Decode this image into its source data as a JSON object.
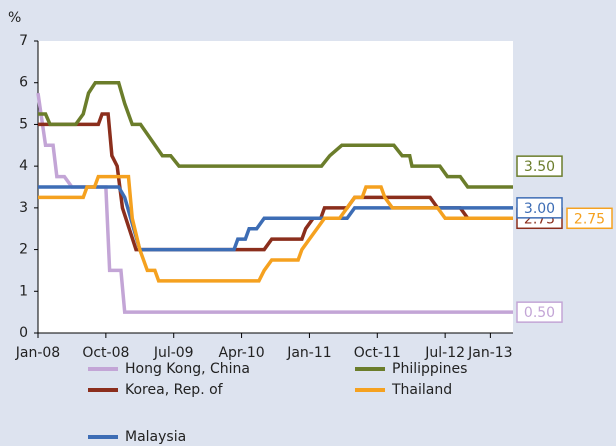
{
  "chart_data": {
    "type": "line",
    "y_unit": "%",
    "xlim": [
      0,
      63
    ],
    "ylim": [
      0,
      7
    ],
    "yticks": [
      0,
      1,
      2,
      3,
      4,
      5,
      6,
      7
    ],
    "xticks": [
      {
        "value": 0,
        "label": "Jan-08"
      },
      {
        "value": 9,
        "label": "Oct-08"
      },
      {
        "value": 18,
        "label": "Jul-09"
      },
      {
        "value": 27,
        "label": "Apr-10"
      },
      {
        "value": 36,
        "label": "Jan-11"
      },
      {
        "value": 45,
        "label": "Oct-11"
      },
      {
        "value": 54,
        "label": "Jul-12"
      },
      {
        "value": 60,
        "label": "Jan-13"
      }
    ],
    "legend": "bottom",
    "series": [
      {
        "name": "Hong Kong, China",
        "color": "#c3a5d6",
        "x": [
          0,
          1,
          2,
          2.5,
          3.5,
          4.5,
          9,
          9.5,
          11,
          11.5,
          63
        ],
        "values": [
          5.75,
          4.5,
          4.5,
          3.75,
          3.75,
          3.5,
          3.5,
          1.5,
          1.5,
          0.5,
          0.5
        ],
        "end_label": "0.50"
      },
      {
        "name": "Korea, Rep. of",
        "color": "#8b2e1c",
        "x": [
          0,
          8,
          8.5,
          9.3,
          9.8,
          10.5,
          11.2,
          13,
          30,
          31,
          35,
          35.5,
          36.5,
          37.5,
          38,
          41,
          42,
          52,
          53,
          56,
          57,
          63
        ],
        "values": [
          5.0,
          5.0,
          5.25,
          5.25,
          4.25,
          4.0,
          3.0,
          2.0,
          2.0,
          2.25,
          2.25,
          2.5,
          2.75,
          2.75,
          3.0,
          3.0,
          3.25,
          3.25,
          3.0,
          3.0,
          2.75,
          2.75
        ],
        "end_label": "2.75"
      },
      {
        "name": "Malaysia",
        "color": "#3d6db5",
        "x": [
          0,
          10.7,
          11.5,
          13.5,
          26,
          26.5,
          27.5,
          28,
          29,
          30,
          41,
          42,
          63
        ],
        "values": [
          3.5,
          3.5,
          3.25,
          2.0,
          2.0,
          2.25,
          2.25,
          2.5,
          2.5,
          2.75,
          2.75,
          3.0,
          3.0
        ],
        "end_label": "3.00"
      },
      {
        "name": "Philippines",
        "color": "#6b7d2b",
        "x": [
          0,
          1,
          1.6,
          5,
          6,
          6.7,
          7.6,
          10.7,
          11.5,
          12.5,
          13.6,
          16.5,
          17.6,
          18.7,
          37.6,
          38.7,
          40.3,
          47.2,
          48.3,
          49.3,
          49.6,
          53.3,
          54.3,
          56,
          57,
          63
        ],
        "values": [
          5.25,
          5.25,
          5.0,
          5.0,
          5.25,
          5.75,
          6.0,
          6.0,
          5.5,
          5.0,
          5.0,
          4.25,
          4.25,
          4.0,
          4.0,
          4.25,
          4.5,
          4.5,
          4.25,
          4.25,
          4.0,
          4.0,
          3.75,
          3.75,
          3.5,
          3.5
        ],
        "end_label": "3.50"
      },
      {
        "name": "Thailand",
        "color": "#f5a11f",
        "x": [
          0,
          6,
          6.5,
          7.5,
          8,
          12,
          12.5,
          13.5,
          14.5,
          15.5,
          16,
          29.3,
          30,
          31,
          34.5,
          35,
          36,
          37,
          38,
          40,
          41,
          42,
          43,
          43.5,
          45.5,
          46,
          47,
          53,
          54,
          63
        ],
        "values": [
          3.25,
          3.25,
          3.5,
          3.5,
          3.75,
          3.75,
          2.75,
          2.0,
          1.5,
          1.5,
          1.25,
          1.25,
          1.5,
          1.75,
          1.75,
          2.0,
          2.25,
          2.5,
          2.75,
          2.75,
          3.0,
          3.25,
          3.25,
          3.5,
          3.5,
          3.25,
          3.0,
          3.0,
          2.75,
          2.75
        ],
        "end_label": "2.75"
      }
    ]
  }
}
